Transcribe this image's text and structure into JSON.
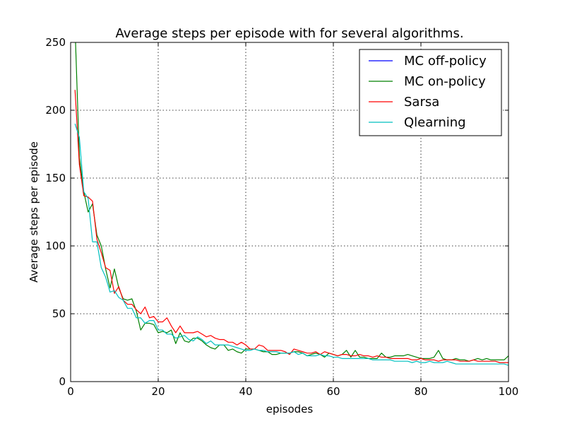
{
  "chart_data": {
    "type": "line",
    "title": "Average steps per episode with for several algorithms.",
    "xlabel": "episodes",
    "ylabel": "Average steps per episode",
    "xlim": [
      0,
      100
    ],
    "ylim": [
      0,
      250
    ],
    "xticks": [
      0,
      20,
      40,
      60,
      80,
      100
    ],
    "yticks": [
      0,
      50,
      100,
      150,
      200,
      250
    ],
    "grid": true,
    "legend_position": "top-right",
    "series": [
      {
        "name": "MC off-policy",
        "color": "#0000ff",
        "x": [],
        "y": []
      },
      {
        "name": "MC on-policy",
        "color": "#008000",
        "x": [
          1,
          2,
          3,
          4,
          5,
          6,
          7,
          8,
          9,
          10,
          11,
          12,
          13,
          14,
          15,
          16,
          17,
          18,
          19,
          20,
          21,
          22,
          23,
          24,
          25,
          26,
          27,
          28,
          29,
          30,
          31,
          32,
          33,
          34,
          35,
          36,
          37,
          38,
          39,
          40,
          41,
          42,
          43,
          44,
          45,
          46,
          47,
          48,
          49,
          50,
          51,
          52,
          53,
          54,
          55,
          56,
          57,
          58,
          59,
          60,
          61,
          62,
          63,
          64,
          65,
          66,
          67,
          68,
          69,
          70,
          71,
          72,
          73,
          74,
          75,
          76,
          77,
          78,
          79,
          80,
          81,
          82,
          83,
          84,
          85,
          86,
          87,
          88,
          89,
          90,
          91,
          92,
          93,
          94,
          95,
          96,
          97,
          98,
          99,
          100
        ],
        "y": [
          262,
          165,
          140,
          125,
          131,
          108,
          100,
          83,
          69,
          83,
          69,
          61,
          60,
          61,
          52,
          38,
          43,
          43,
          42,
          36,
          37,
          36,
          38,
          28,
          36,
          30,
          29,
          32,
          32,
          30,
          27,
          25,
          24,
          27,
          27,
          23,
          24,
          22,
          21,
          24,
          24,
          24,
          23,
          22,
          22,
          20,
          20,
          21,
          21,
          21,
          22,
          22,
          21,
          19,
          20,
          21,
          20,
          18,
          21,
          20,
          19,
          20,
          23,
          18,
          23,
          18,
          18,
          17,
          17,
          17,
          21,
          18,
          18,
          19,
          19,
          19,
          20,
          19,
          18,
          17,
          17,
          17,
          18,
          23,
          17,
          16,
          16,
          17,
          16,
          16,
          15,
          16,
          17,
          16,
          17,
          16,
          16,
          16,
          16,
          19
        ]
      },
      {
        "name": "Sarsa",
        "color": "#ff0000",
        "x": [
          1,
          2,
          3,
          4,
          5,
          6,
          7,
          8,
          9,
          10,
          11,
          12,
          13,
          14,
          15,
          16,
          17,
          18,
          19,
          20,
          21,
          22,
          23,
          24,
          25,
          26,
          27,
          28,
          29,
          30,
          31,
          32,
          33,
          34,
          35,
          36,
          37,
          38,
          39,
          40,
          41,
          42,
          43,
          44,
          45,
          46,
          47,
          48,
          49,
          50,
          51,
          52,
          53,
          54,
          55,
          56,
          57,
          58,
          59,
          60,
          61,
          62,
          63,
          64,
          65,
          66,
          67,
          68,
          69,
          70,
          71,
          72,
          73,
          74,
          75,
          76,
          77,
          78,
          79,
          80,
          81,
          82,
          83,
          84,
          85,
          86,
          87,
          88,
          89,
          90,
          91,
          92,
          93,
          94,
          95,
          96,
          97,
          98,
          99,
          100
        ],
        "y": [
          215,
          160,
          137,
          136,
          133,
          105,
          95,
          84,
          82,
          65,
          70,
          60,
          57,
          57,
          53,
          50,
          55,
          47,
          48,
          44,
          44,
          47,
          41,
          36,
          41,
          36,
          36,
          36,
          37,
          35,
          33,
          34,
          32,
          31,
          31,
          29,
          29,
          27,
          29,
          27,
          24,
          24,
          27,
          26,
          23,
          23,
          23,
          23,
          22,
          20,
          24,
          23,
          22,
          21,
          21,
          22,
          20,
          22,
          21,
          20,
          19,
          20,
          20,
          19,
          19,
          20,
          19,
          19,
          18,
          19,
          18,
          18,
          17,
          17,
          17,
          17,
          17,
          16,
          16,
          17,
          16,
          16,
          16,
          15,
          16,
          16,
          16,
          16,
          15,
          15,
          15,
          16,
          15,
          15,
          15,
          15,
          15,
          14,
          14,
          14
        ]
      },
      {
        "name": "Qlearning",
        "color": "#00bfbf",
        "x": [
          1,
          2,
          3,
          4,
          5,
          6,
          7,
          8,
          9,
          10,
          11,
          12,
          13,
          14,
          15,
          16,
          17,
          18,
          19,
          20,
          21,
          22,
          23,
          24,
          25,
          26,
          27,
          28,
          29,
          30,
          31,
          32,
          33,
          34,
          35,
          36,
          37,
          38,
          39,
          40,
          41,
          42,
          43,
          44,
          45,
          46,
          47,
          48,
          49,
          50,
          51,
          52,
          53,
          54,
          55,
          56,
          57,
          58,
          59,
          60,
          61,
          62,
          63,
          64,
          65,
          66,
          67,
          68,
          69,
          70,
          71,
          72,
          73,
          74,
          75,
          76,
          77,
          78,
          79,
          80,
          81,
          82,
          83,
          84,
          85,
          86,
          87,
          88,
          89,
          90,
          91,
          92,
          93,
          94,
          95,
          96,
          97,
          98,
          99,
          100
        ],
        "y": [
          190,
          180,
          140,
          135,
          103,
          103,
          84,
          77,
          66,
          67,
          62,
          60,
          54,
          54,
          47,
          47,
          43,
          45,
          45,
          38,
          38,
          35,
          35,
          32,
          33,
          34,
          31,
          30,
          33,
          31,
          28,
          30,
          27,
          27,
          27,
          27,
          26,
          25,
          24,
          23,
          23,
          24,
          23,
          23,
          22,
          22,
          22,
          21,
          21,
          21,
          22,
          20,
          21,
          19,
          19,
          19,
          20,
          19,
          19,
          18,
          18,
          17,
          17,
          17,
          17,
          17,
          17,
          17,
          16,
          16,
          16,
          16,
          16,
          15,
          15,
          15,
          15,
          14,
          15,
          14,
          14,
          15,
          14,
          14,
          14,
          15,
          14,
          13,
          13,
          13,
          13,
          13,
          13,
          13,
          13,
          13,
          13,
          13,
          13,
          12
        ]
      }
    ]
  }
}
